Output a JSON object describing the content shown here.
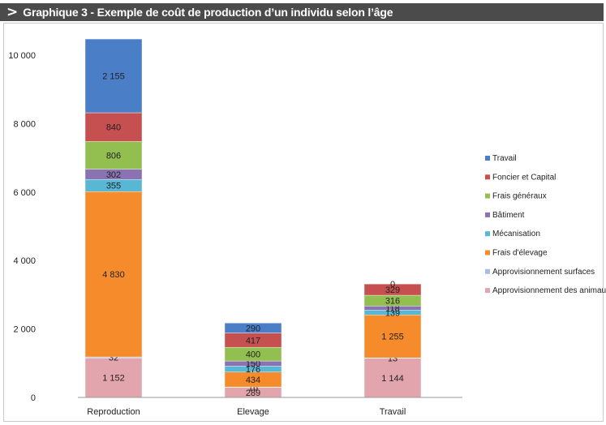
{
  "header": {
    "chevron": ">",
    "title": "Graphique 3 - Exemple de coût de production d’un individu selon l’âge"
  },
  "chart_data": {
    "type": "bar",
    "stacked": true,
    "title": "Graphique 3 - Exemple de coût de production d’un individu selon l’âge",
    "categories": [
      "Reproduction",
      "Elevage",
      "Travail"
    ],
    "ylim": [
      0,
      10000
    ],
    "yticks": [
      0,
      2000,
      4000,
      6000,
      8000,
      10000
    ],
    "ytick_labels": [
      "0",
      "2 000",
      "4 000",
      "6 000",
      "8 000",
      "10 000"
    ],
    "grid": false,
    "legend_position": "right",
    "series": [
      {
        "name": "Approvisionnement des animaux",
        "color": "#e3a5ad",
        "values": [
          1152,
          289,
          1144
        ],
        "labels": [
          "1 152",
          "289",
          "1 144"
        ]
      },
      {
        "name": "Approvisionnement surfaces",
        "color": "#a9bedf",
        "values": [
          32,
          16,
          13
        ],
        "labels": [
          "32",
          "16",
          "13"
        ]
      },
      {
        "name": "Frais d'élevage",
        "color": "#f58b2a",
        "values": [
          4830,
          434,
          1255
        ],
        "labels": [
          "4 830",
          "434",
          "1 255"
        ]
      },
      {
        "name": "Mécanisation",
        "color": "#58b7d3",
        "values": [
          355,
          176,
          139
        ],
        "labels": [
          "355",
          "176",
          "139"
        ]
      },
      {
        "name": "Bâtiment",
        "color": "#8a72b3",
        "values": [
          302,
          150,
          118
        ],
        "labels": [
          "302",
          "150",
          "118"
        ]
      },
      {
        "name": "Frais généraux",
        "color": "#92bf4f",
        "values": [
          806,
          400,
          316
        ],
        "labels": [
          "806",
          "400",
          "316"
        ]
      },
      {
        "name": "Foncier et Capital",
        "color": "#c64f4f",
        "values": [
          840,
          417,
          329
        ],
        "labels": [
          "840",
          "417",
          "329"
        ]
      },
      {
        "name": "Travail",
        "color": "#4a7fc7",
        "values": [
          2155,
          290,
          0
        ],
        "labels": [
          "2 155",
          "290",
          "0"
        ]
      }
    ],
    "legend_order": [
      "Travail",
      "Foncier et Capital",
      "Frais généraux",
      "Bâtiment",
      "Mécanisation",
      "Frais d'élevage",
      "Approvisionnement surfaces",
      "Approvisionnement des animaux"
    ]
  }
}
